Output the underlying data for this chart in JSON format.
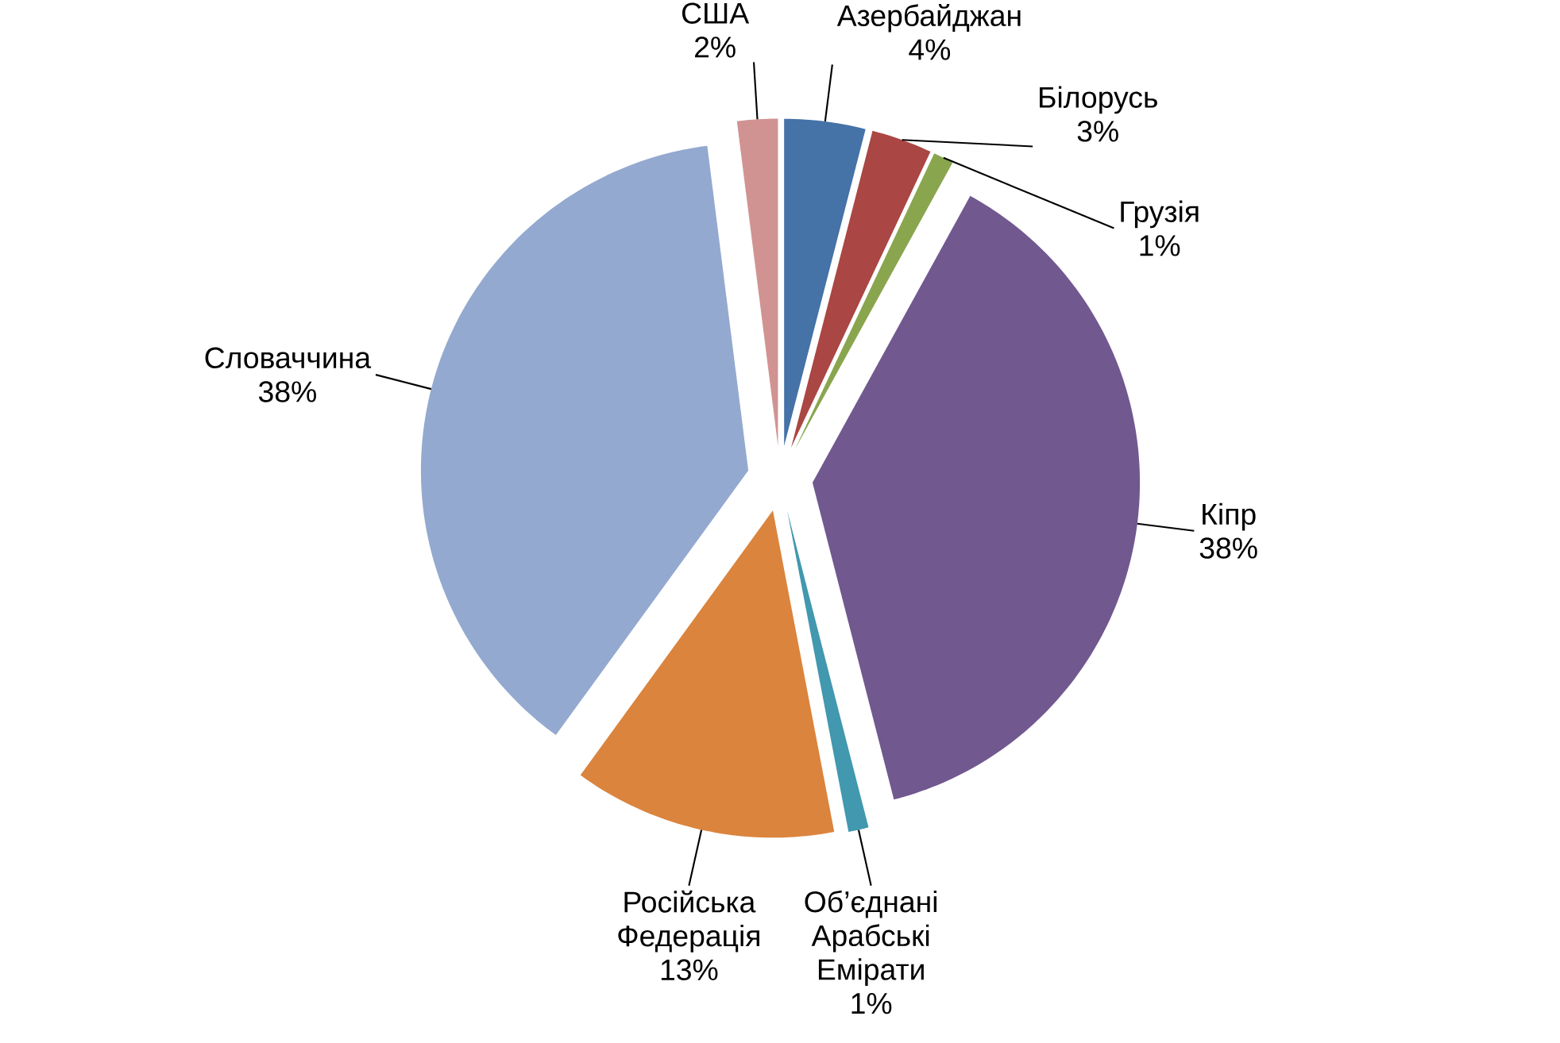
{
  "chart_data": {
    "type": "pie",
    "categories": [
      "Азербайджан",
      "Білорусь",
      "Грузія",
      "Кіпр",
      "Об’єднані Арабські Емірати",
      "Російська Федерація",
      "Словаччина",
      "США"
    ],
    "values": [
      4,
      3,
      1,
      38,
      1,
      13,
      38,
      2
    ],
    "value_labels": [
      "4%",
      "3%",
      "1%",
      "38%",
      "1%",
      "13%",
      "38%",
      "2%"
    ],
    "colors": [
      "#4572a7",
      "#aa4643",
      "#89a54e",
      "#71588f",
      "#4198af",
      "#db843d",
      "#93a9cf",
      "#d19392"
    ]
  }
}
